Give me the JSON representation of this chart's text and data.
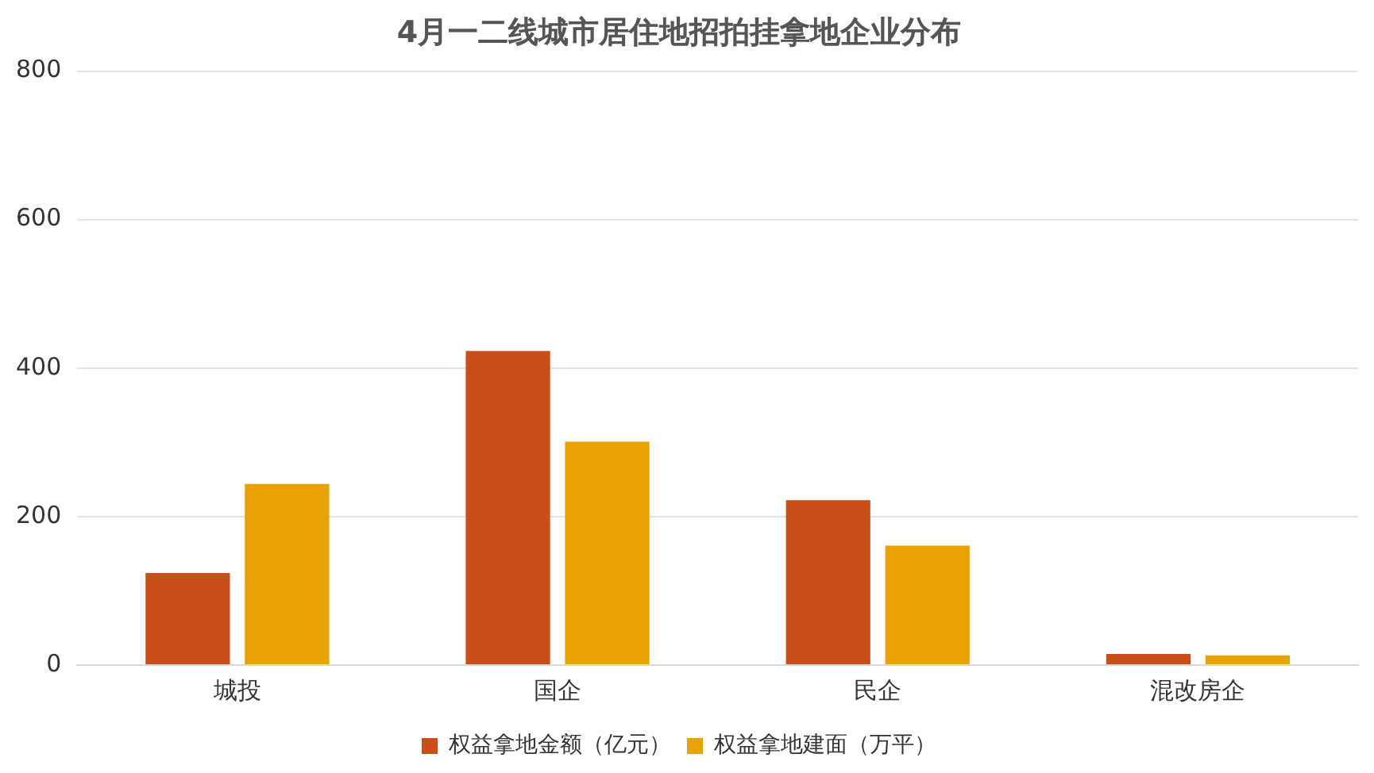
{
  "chart_data": {
    "type": "bar",
    "title": "4月一二线城市居住地招拍挂拿地企业分布",
    "categories": [
      "城投",
      "国企",
      "民企",
      "混改房企"
    ],
    "series": [
      {
        "name": "权益拿地金额（亿元）",
        "color": "#c94f1a",
        "values": [
          124,
          423,
          222,
          15
        ]
      },
      {
        "name": "权益拿地建面（万平）",
        "color": "#e8a202",
        "values": [
          244,
          301,
          161,
          13
        ]
      }
    ],
    "ylim": [
      0,
      800
    ],
    "yticks": [
      0,
      200,
      400,
      600,
      800
    ],
    "grid": "y",
    "legend": "bottom"
  }
}
